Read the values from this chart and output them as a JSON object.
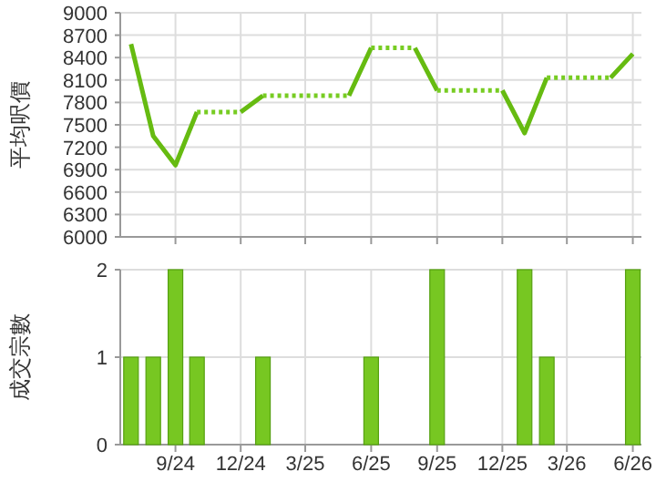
{
  "chart_data": [
    {
      "type": "line",
      "ylabel": "平均呎價",
      "xlim": [
        "2024-06-16",
        "2026-06-13"
      ],
      "xticks": [
        {
          "value": "2024-09",
          "label": null
        },
        {
          "value": "2024-12",
          "label": null
        },
        {
          "value": "2025-03",
          "label": null
        },
        {
          "value": "2025-06",
          "label": null
        },
        {
          "value": "2025-09",
          "label": null
        },
        {
          "value": "2025-12",
          "label": null
        },
        {
          "value": "2026-03",
          "label": null
        },
        {
          "value": "2026-06",
          "label": null
        }
      ],
      "ylim": [
        6000,
        9000
      ],
      "yticks": [
        6000,
        6300,
        6600,
        6900,
        7200,
        7500,
        7800,
        8100,
        8400,
        8700,
        9000
      ],
      "grid": true,
      "tick_labels": "y",
      "series": [
        {
          "color": "#66bb11",
          "line_style": "solid",
          "x": [
            "2024-07",
            "2024-08",
            "2024-09",
            "2024-10",
            "2024-11-15",
            "2024-12",
            "2025-01",
            "2025-03",
            "2025-05",
            "2025-06",
            "2025-07",
            "2025-08",
            "2025-09",
            "2025-11",
            "2025-12",
            "2026-01",
            "2026-02",
            "2026-04",
            "2026-05",
            "2026-06"
          ],
          "values": [
            8580,
            7350,
            6960,
            7670,
            null,
            7670,
            7890,
            null,
            7890,
            8530,
            null,
            8530,
            7960,
            null,
            7960,
            7390,
            8130,
            null,
            8130,
            8450
          ]
        },
        {
          "color": "#77cc22",
          "line_style": "dotted",
          "x": [
            "2024-10",
            "2024-12",
            "2024-12-20",
            "2025-01",
            "2025-05",
            "2025-05-20",
            "2025-06",
            "2025-08",
            "2025-08-20",
            "2025-09",
            "2025-12",
            "2026-01-15",
            "2026-02",
            "2026-05"
          ],
          "values": [
            7670,
            7670,
            null,
            7890,
            7890,
            null,
            8530,
            8530,
            null,
            7960,
            7960,
            null,
            8130,
            8130
          ]
        }
      ]
    },
    {
      "type": "bar",
      "ylabel": "成交宗數",
      "xlim": [
        "2024-06-16",
        "2026-06-13"
      ],
      "xticks": [
        {
          "value": "2024-09",
          "label": "9/24"
        },
        {
          "value": "2024-12",
          "label": "12/24"
        },
        {
          "value": "2025-03",
          "label": "3/25"
        },
        {
          "value": "2025-06",
          "label": "6/25"
        },
        {
          "value": "2025-09",
          "label": "9/25"
        },
        {
          "value": "2025-12",
          "label": "12/25"
        },
        {
          "value": "2026-03",
          "label": "3/26"
        },
        {
          "value": "2026-06",
          "label": "6/26"
        }
      ],
      "ylim": [
        0,
        2
      ],
      "yticks": [
        0,
        1,
        2
      ],
      "grid": true,
      "x": [
        "2024-07",
        "2024-08",
        "2024-09",
        "2024-10",
        "2025-01",
        "2025-06",
        "2025-09",
        "2026-01",
        "2026-02",
        "2026-06"
      ],
      "values": [
        1,
        1,
        2,
        1,
        1,
        1,
        2,
        2,
        1,
        2
      ],
      "color": "#77c722"
    }
  ]
}
